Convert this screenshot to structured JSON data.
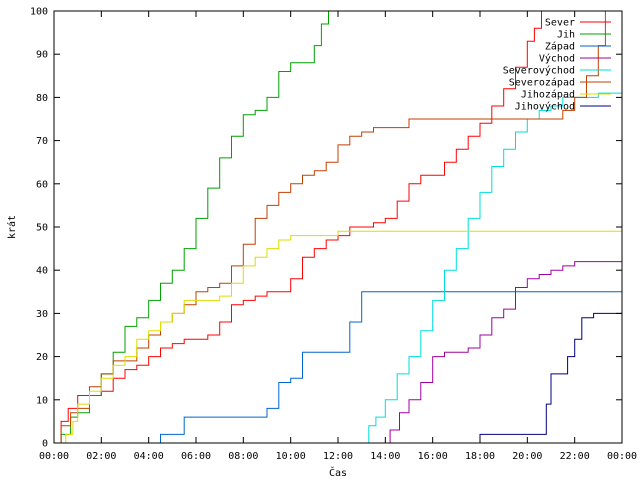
{
  "chart_data": {
    "type": "line",
    "title": "",
    "xlabel": "Čas",
    "ylabel": "krát",
    "xlim": [
      0,
      24
    ],
    "ylim": [
      0,
      100
    ],
    "x_ticks": [
      0,
      2,
      4,
      6,
      8,
      10,
      12,
      14,
      16,
      18,
      20,
      22,
      24
    ],
    "x_tick_labels": [
      "00:00",
      "02:00",
      "04:00",
      "06:00",
      "08:00",
      "10:00",
      "12:00",
      "14:00",
      "16:00",
      "18:00",
      "20:00",
      "22:00",
      "00:00"
    ],
    "y_ticks": [
      0,
      10,
      20,
      30,
      40,
      50,
      60,
      70,
      80,
      90,
      100
    ],
    "grid": false,
    "legend_position": "top-right",
    "series": [
      {
        "name": "Sever",
        "color": "#ff0000",
        "x": [
          0,
          0.3,
          0.6,
          1.0,
          1.5,
          2.0,
          2.5,
          3.0,
          3.5,
          4.0,
          4.5,
          5.0,
          5.5,
          6.0,
          6.5,
          7.0,
          7.5,
          8.0,
          8.5,
          9.0,
          9.5,
          10.0,
          10.5,
          11.0,
          11.5,
          12.0,
          12.5,
          13.0,
          13.5,
          14.0,
          14.5,
          15.0,
          15.5,
          16.0,
          16.5,
          17.0,
          17.5,
          18.0,
          18.5,
          19.0,
          19.5,
          20.0,
          20.3,
          20.6
        ],
        "values": [
          0,
          5,
          8,
          11,
          11,
          12,
          15,
          17,
          18,
          20,
          22,
          23,
          24,
          24,
          25,
          28,
          32,
          33,
          34,
          35,
          35,
          38,
          43,
          45,
          47,
          48,
          50,
          50,
          51,
          52,
          56,
          60,
          62,
          62,
          65,
          68,
          71,
          74,
          78,
          82,
          87,
          93,
          96,
          100
        ]
      },
      {
        "name": "Jih",
        "color": "#00a000",
        "x": [
          0,
          0.3,
          0.7,
          1.0,
          1.5,
          2.0,
          2.5,
          3.0,
          3.5,
          4.0,
          4.5,
          5.0,
          5.5,
          6.0,
          6.5,
          7.0,
          7.5,
          8.0,
          8.5,
          9.0,
          9.5,
          10.0,
          10.5,
          11.0,
          11.3,
          11.6
        ],
        "values": [
          0,
          2,
          6,
          7,
          11,
          16,
          21,
          27,
          29,
          33,
          37,
          40,
          45,
          52,
          59,
          66,
          71,
          76,
          77,
          80,
          86,
          88,
          88,
          92,
          97,
          100
        ]
      },
      {
        "name": "Západ",
        "color": "#0066cc",
        "x": [
          0,
          4.3,
          4.5,
          5.0,
          5.5,
          6.0,
          7.0,
          8.0,
          8.5,
          9.0,
          9.5,
          10.0,
          10.5,
          11.0,
          11.5,
          12.0,
          12.5,
          13.0,
          13.5,
          14.0,
          16.0,
          18.0,
          20.0,
          22.0,
          24.0
        ],
        "values": [
          0,
          0,
          2,
          2,
          6,
          6,
          6,
          6,
          6,
          8,
          14,
          15,
          21,
          21,
          21,
          21,
          28,
          35,
          35,
          35,
          35,
          35,
          35,
          35,
          35
        ]
      },
      {
        "name": "Východ",
        "color": "#a000a0",
        "x": [
          13.8,
          14.2,
          14.6,
          15.0,
          15.5,
          16.0,
          16.5,
          17.0,
          17.5,
          18.0,
          18.5,
          19.0,
          19.5,
          20.0,
          20.5,
          21.0,
          21.5,
          22.0,
          23.0,
          24.0
        ],
        "values": [
          0,
          3,
          7,
          10,
          14,
          20,
          21,
          21,
          22,
          25,
          29,
          31,
          36,
          38,
          39,
          40,
          41,
          42,
          42,
          42
        ]
      },
      {
        "name": "Severovýchod",
        "color": "#00dddd",
        "x": [
          13.0,
          13.3,
          13.6,
          14.0,
          14.5,
          15.0,
          15.5,
          16.0,
          16.5,
          17.0,
          17.5,
          18.0,
          18.5,
          19.0,
          19.5,
          20.0,
          20.5,
          21.0,
          21.5,
          22.0,
          22.5,
          23.0,
          24.0
        ],
        "values": [
          0,
          4,
          6,
          10,
          16,
          20,
          26,
          33,
          40,
          45,
          52,
          58,
          64,
          68,
          72,
          75,
          77,
          78,
          80,
          80,
          80,
          81,
          81
        ]
      },
      {
        "name": "Severozápad",
        "color": "#c04000",
        "x": [
          0,
          0.3,
          0.7,
          1.0,
          1.5,
          2.0,
          2.5,
          3.0,
          3.5,
          4.0,
          4.5,
          5.0,
          5.5,
          6.0,
          6.5,
          7.0,
          7.5,
          8.0,
          8.5,
          9.0,
          9.5,
          10.0,
          10.5,
          11.0,
          11.5,
          12.0,
          12.5,
          13.0,
          13.5,
          14.0,
          15.0,
          16.0,
          17.0,
          18.0,
          19.0,
          20.0,
          21.0,
          21.5,
          22.0,
          22.5,
          23.0,
          23.3
        ],
        "values": [
          0,
          4,
          7,
          8,
          13,
          16,
          19,
          19,
          22,
          25,
          28,
          30,
          32,
          35,
          36,
          37,
          41,
          46,
          52,
          55,
          58,
          60,
          62,
          63,
          65,
          69,
          71,
          72,
          73,
          73,
          75,
          75,
          75,
          75,
          75,
          75,
          75,
          77,
          80,
          85,
          92,
          100
        ]
      },
      {
        "name": "Jihozápad",
        "color": "#dddd00",
        "x": [
          0,
          0.5,
          0.8,
          1.0,
          1.5,
          2.0,
          2.5,
          3.0,
          3.5,
          4.0,
          4.5,
          5.0,
          5.5,
          6.0,
          6.5,
          7.0,
          7.5,
          8.0,
          8.5,
          9.0,
          9.5,
          10.0,
          12.0,
          14.0,
          16.0,
          18.0,
          20.0,
          22.0,
          24.0
        ],
        "values": [
          0,
          2,
          5,
          9,
          12,
          15,
          18,
          20,
          24,
          26,
          28,
          30,
          33,
          33,
          33,
          34,
          37,
          41,
          43,
          45,
          47,
          48,
          49,
          49,
          49,
          49,
          49,
          49,
          49
        ]
      },
      {
        "name": "Jihovýchod",
        "color": "#000080",
        "x": [
          17.8,
          18.0,
          19.0,
          20.0,
          20.5,
          20.8,
          21.0,
          21.3,
          21.7,
          22.0,
          22.3,
          22.8,
          23.0,
          24.0
        ],
        "values": [
          0,
          2,
          2,
          2,
          2,
          9,
          16,
          16,
          20,
          24,
          29,
          30,
          30,
          30
        ]
      }
    ]
  }
}
